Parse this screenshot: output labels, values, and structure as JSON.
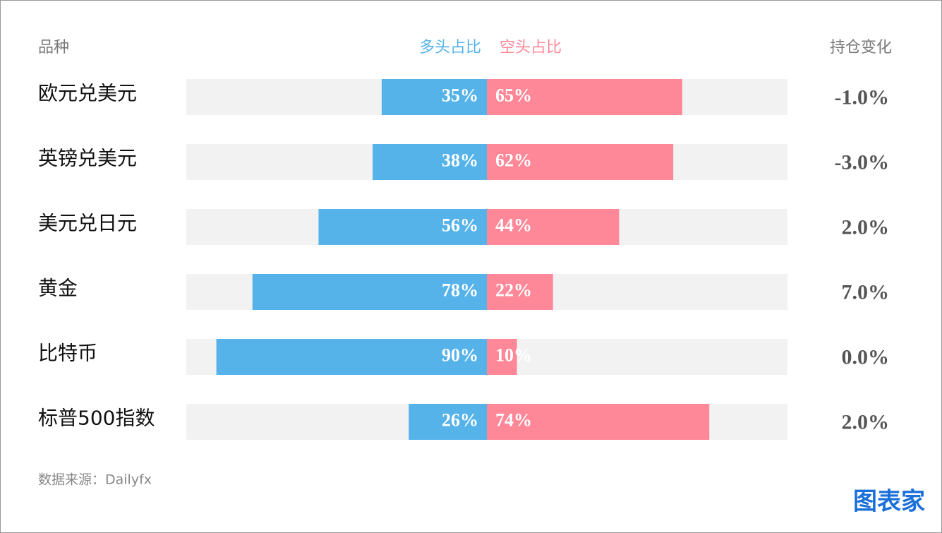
{
  "chart_data": {
    "type": "diverging-bar",
    "category_label": "品种",
    "categories": [
      "欧元兑美元",
      "英镑兑美元",
      "美元兑日元",
      "黄金",
      "比特币",
      "标普500指数"
    ],
    "series": [
      {
        "name": "多头占比",
        "color": "#56b3ea",
        "values": [
          35,
          38,
          56,
          78,
          90,
          26
        ],
        "value_labels": [
          "35%",
          "38%",
          "56%",
          "78%",
          "90%",
          "26%"
        ]
      },
      {
        "name": "空头占比",
        "color": "#ff8898",
        "values": [
          65,
          62,
          44,
          22,
          10,
          74
        ],
        "value_labels": [
          "65%",
          "62%",
          "44%",
          "22%",
          "10%",
          "74%"
        ]
      }
    ],
    "change": {
      "name": "持仓变化",
      "values": [
        -1.0,
        -3.0,
        2.0,
        7.0,
        0.0,
        2.0
      ],
      "value_labels": [
        "-1.0%",
        "-3.0%",
        "2.0%",
        "7.0%",
        "0.0%",
        "2.0%"
      ]
    },
    "xlim": [
      0,
      100
    ],
    "track_color": "#f2f2f2",
    "source": "数据来源：Dailyfx",
    "watermark": "图表家"
  }
}
